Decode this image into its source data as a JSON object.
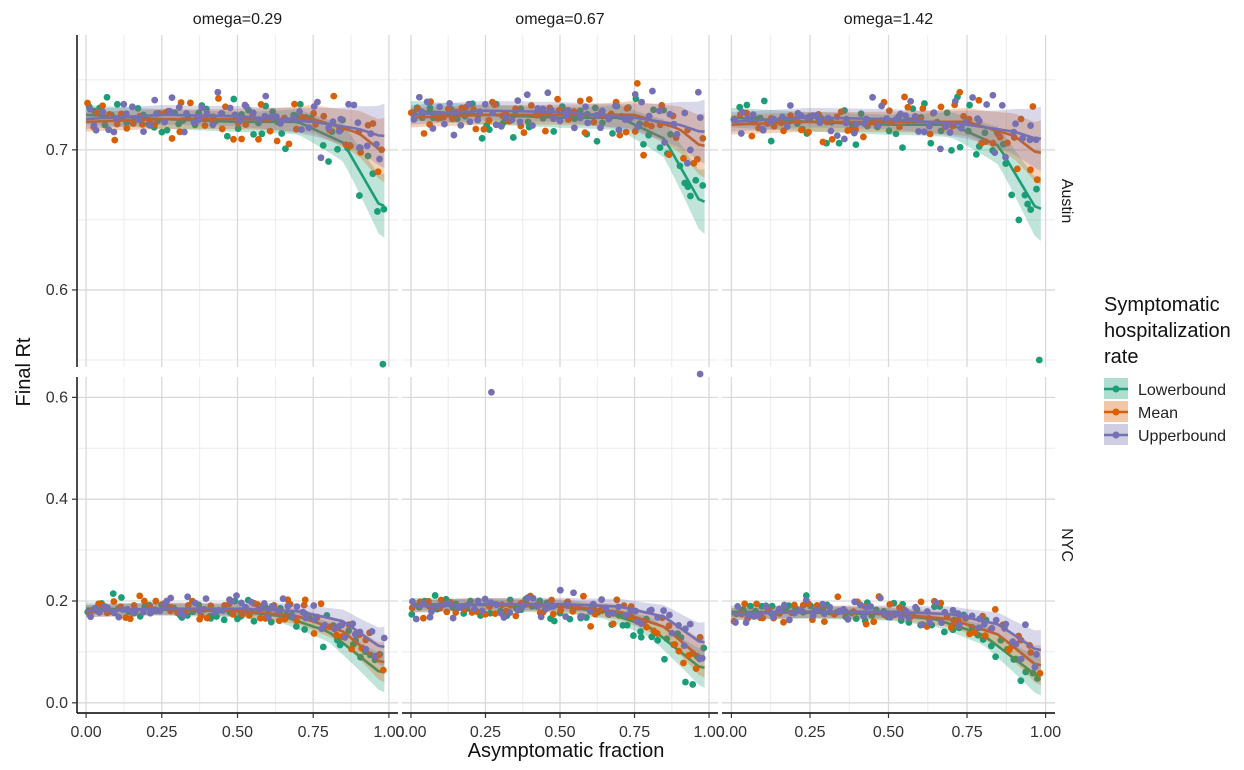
{
  "chart_data": {
    "type": "scatter",
    "xlabel": "Asymptomatic fraction",
    "ylabel": "Final Rt",
    "facet_cols": [
      "omega=0.29",
      "omega=0.67",
      "omega=1.42"
    ],
    "facet_rows": [
      "Austin",
      "NYC"
    ],
    "x_ticks": [
      "0.00",
      "0.25",
      "0.50",
      "0.75",
      "1.00"
    ],
    "x_tick_values": [
      0,
      0.25,
      0.5,
      0.75,
      1.0
    ],
    "xlim": [
      -0.03,
      1.03
    ],
    "rows": [
      {
        "ylim": [
          0.545,
          0.782
        ],
        "y_ticks": [
          "0.6",
          "0.7"
        ],
        "y_tick_values": [
          0.6,
          0.7
        ]
      },
      {
        "ylim": [
          -0.02,
          0.64
        ],
        "y_ticks": [
          "0.0",
          "0.2",
          "0.4",
          "0.6"
        ],
        "y_tick_values": [
          0.0,
          0.2,
          0.4,
          0.6
        ]
      }
    ],
    "grid": true,
    "legend_position": "right",
    "legend": {
      "title_lines": [
        "Symptomatic",
        "hospitalization",
        "rate"
      ],
      "entries": [
        "Lowerbound",
        "Mean",
        "Upperbound"
      ]
    },
    "colors": {
      "Lowerbound": "#1b9e77",
      "Mean": "#d95f02",
      "Upperbound": "#7570b3"
    },
    "smooth_series": {
      "Lowerbound": {
        "Austin": [
          [
            0,
            0.725
          ],
          [
            0.25,
            0.722
          ],
          [
            0.5,
            0.72
          ],
          [
            0.7,
            0.72
          ],
          [
            0.85,
            0.705
          ],
          [
            0.97,
            0.66
          ]
        ],
        "NYC": [
          [
            0,
            0.185
          ],
          [
            0.25,
            0.183
          ],
          [
            0.5,
            0.18
          ],
          [
            0.65,
            0.17
          ],
          [
            0.8,
            0.14
          ],
          [
            0.97,
            0.06
          ]
        ]
      },
      "Mean": {
        "Austin": [
          [
            0,
            0.72
          ],
          [
            0.25,
            0.722
          ],
          [
            0.5,
            0.722
          ],
          [
            0.75,
            0.722
          ],
          [
            0.9,
            0.712
          ],
          [
            0.97,
            0.7
          ]
        ],
        "NYC": [
          [
            0,
            0.18
          ],
          [
            0.25,
            0.185
          ],
          [
            0.5,
            0.182
          ],
          [
            0.7,
            0.17
          ],
          [
            0.85,
            0.14
          ],
          [
            0.97,
            0.08
          ]
        ]
      },
      "Upperbound": {
        "Austin": [
          [
            0,
            0.722
          ],
          [
            0.25,
            0.725
          ],
          [
            0.5,
            0.724
          ],
          [
            0.75,
            0.72
          ],
          [
            0.9,
            0.715
          ],
          [
            0.97,
            0.71
          ]
        ],
        "NYC": [
          [
            0,
            0.18
          ],
          [
            0.25,
            0.185
          ],
          [
            0.5,
            0.185
          ],
          [
            0.7,
            0.18
          ],
          [
            0.85,
            0.16
          ],
          [
            0.97,
            0.11
          ]
        ]
      }
    },
    "outliers": [
      {
        "series": "Lowerbound",
        "col": 0,
        "row": 0,
        "x": 0.98,
        "y": 0.547
      },
      {
        "series": "Upperbound",
        "col": 1,
        "row": 0,
        "x": 0.97,
        "y": 0.54
      },
      {
        "series": "Lowerbound",
        "col": 2,
        "row": 0,
        "x": 0.98,
        "y": 0.55
      },
      {
        "series": "Upperbound",
        "col": 1,
        "row": 1,
        "x": 0.27,
        "y": 0.61
      }
    ]
  }
}
